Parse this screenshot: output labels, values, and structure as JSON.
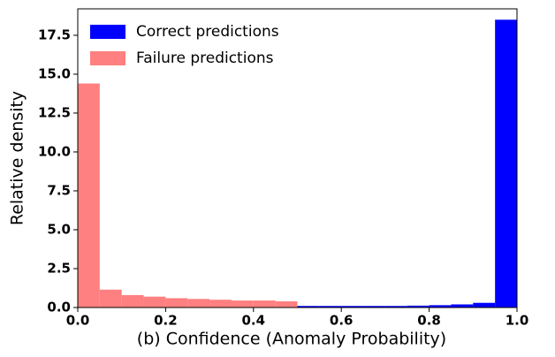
{
  "chart_data": {
    "type": "histogram",
    "xlabel": "(b) Confidence (Anomaly Probability)",
    "ylabel": "Relative density",
    "series": [
      {
        "name": "Correct predictions",
        "color": "#0000ff",
        "bins": [
          0.5,
          0.55,
          0.6,
          0.65,
          0.7,
          0.75,
          0.8,
          0.85,
          0.9,
          0.95,
          1.0
        ],
        "values": [
          0.1,
          0.1,
          0.1,
          0.1,
          0.1,
          0.12,
          0.15,
          0.2,
          0.3,
          18.5
        ]
      },
      {
        "name": "Failure predictions",
        "color": "#ff8080",
        "bins": [
          0.0,
          0.05,
          0.1,
          0.15,
          0.2,
          0.25,
          0.3,
          0.35,
          0.4,
          0.45,
          0.5
        ],
        "values": [
          14.4,
          1.15,
          0.8,
          0.7,
          0.6,
          0.55,
          0.5,
          0.45,
          0.45,
          0.4
        ]
      }
    ],
    "xlim": [
      0,
      1
    ],
    "xticks": [
      {
        "value": 0,
        "label": "0.0"
      },
      0.2,
      0.4,
      0.6,
      0.8,
      {
        "value": 1,
        "label": "1.0"
      }
    ],
    "ylim": [
      0,
      19.2
    ],
    "yticks": [
      {
        "value": 0,
        "label": "0.0"
      },
      2.5,
      {
        "value": 5,
        "label": "5.0"
      },
      7.5,
      {
        "value": 10,
        "label": "10.0"
      },
      12.5,
      {
        "value": 15,
        "label": "15.0"
      },
      17.5
    ],
    "legend": "upper left"
  }
}
